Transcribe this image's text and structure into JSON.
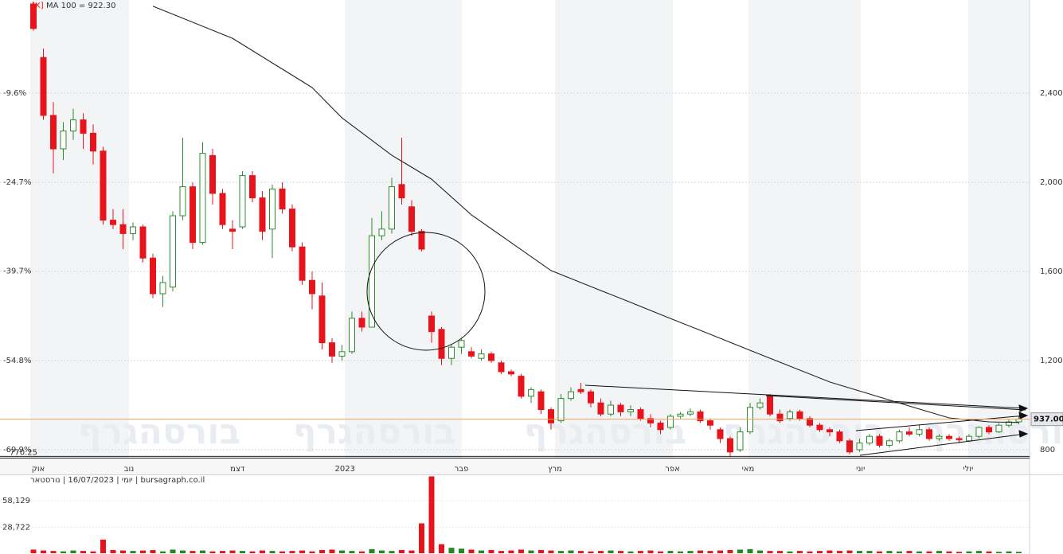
{
  "chart_data": {
    "type": "candlestick",
    "legend_close": "[X]",
    "legend": "MA 100 = 922.30",
    "info": "יומי | 16/07/2023 | נורסטאר | bursagraph.co.il",
    "watermark": "בורסהגרף",
    "up_color": "#2e8b2e",
    "down_color": "#e8141c",
    "xlim": [
      -0.32,
      100.08
    ],
    "xticks": [
      {
        "value": 0.48,
        "label": "אוק"
      },
      {
        "value": 9.6,
        "label": "נוב"
      },
      {
        "value": 20.5,
        "label": "דצמ"
      },
      {
        "value": 31.3,
        "label": "2023"
      },
      {
        "value": 43,
        "label": "פבר"
      },
      {
        "value": 52.4,
        "label": "מרץ"
      },
      {
        "value": 64.2,
        "label": "אפר"
      },
      {
        "value": 71.8,
        "label": "מאי"
      },
      {
        "value": 83.1,
        "label": "יוני"
      },
      {
        "value": 93.9,
        "label": "יולי"
      }
    ],
    "ylim": [
      764.3,
      2817.9
    ],
    "yticks": [
      800,
      {
        "value": 1200,
        "label": "1,200"
      },
      {
        "value": 1600,
        "label": "1,600"
      },
      {
        "value": 2000,
        "label": "2,000"
      },
      {
        "value": 2400,
        "label": "2,400"
      }
    ],
    "y2lim": [
      -71.25,
      6.15
    ],
    "y2ticks": [
      {
        "value": -69.9,
        "label": "-69.9%"
      },
      {
        "value": -54.8,
        "label": "-54.8%"
      },
      {
        "value": -39.7,
        "label": "-39.7%"
      },
      {
        "value": -24.7,
        "label": "-24.7%"
      },
      {
        "value": -9.6,
        "label": "-9.6%"
      }
    ],
    "volume_lim": [
      0,
      86300
    ],
    "volume_ticks": [
      {
        "value": 28722,
        "label": "28,722"
      },
      {
        "value": 58129,
        "label": "58,129"
      }
    ],
    "last_price": {
      "value": 937,
      "label": "937.00"
    },
    "low_mark": {
      "value": 770.25,
      "label": "770.25"
    },
    "open": [
      2800,
      2560,
      2300,
      2150,
      2230,
      2280,
      2220,
      2140,
      1830,
      1810,
      1770,
      1800,
      1660,
      1500,
      1530,
      1850,
      1980,
      1730,
      2120,
      1950,
      1790,
      1800,
      2030,
      1930,
      1790,
      1970,
      1880,
      1710,
      1560,
      1490,
      1280,
      1220,
      1240,
      1390,
      1350,
      1760,
      1790,
      1990,
      1890,
      1780,
      1400,
      1340,
      1210,
      1260,
      1240,
      1210,
      1230,
      1190,
      1150,
      1130,
      1040,
      1060,
      980,
      930,
      1030,
      1070,
      1060,
      1010,
      960,
      1000,
      970,
      980,
      940,
      920,
      900,
      950,
      960,
      970,
      930,
      890,
      850,
      800,
      880,
      990,
      1040,
      960,
      940,
      970,
      940,
      910,
      890,
      880,
      840,
      800,
      830,
      860,
      820,
      840,
      880,
      870,
      890,
      850,
      860,
      850,
      840,
      860,
      900,
      880,
      910,
      925
    ],
    "high": [
      2810,
      2600,
      2360,
      2270,
      2330,
      2310,
      2260,
      2160,
      1880,
      1880,
      1820,
      1810,
      1680,
      1580,
      1870,
      2200,
      2000,
      2180,
      2150,
      1970,
      1830,
      2050,
      2050,
      1960,
      1990,
      2000,
      1900,
      1730,
      1600,
      1550,
      1300,
      1270,
      1420,
      1420,
      1840,
      1870,
      2020,
      2200,
      1920,
      1790,
      1420,
      1350,
      1270,
      1300,
      1260,
      1250,
      1240,
      1200,
      1160,
      1140,
      1080,
      1070,
      990,
      1050,
      1080,
      1100,
      1070,
      1030,
      1020,
      1010,
      1000,
      990,
      960,
      930,
      960,
      970,
      985,
      980,
      940,
      900,
      860,
      900,
      1010,
      1030,
      1050,
      980,
      980,
      980,
      950,
      920,
      900,
      890,
      850,
      850,
      870,
      870,
      850,
      890,
      900,
      910,
      900,
      870,
      870,
      860,
      870,
      905,
      910,
      920,
      935,
      950
    ],
    "low": [
      2680,
      2280,
      2040,
      2100,
      2190,
      2150,
      2080,
      1810,
      1790,
      1700,
      1740,
      1640,
      1480,
      1440,
      1510,
      1830,
      1700,
      1720,
      1900,
      1790,
      1700,
      1790,
      1910,
      1740,
      1660,
      1860,
      1690,
      1540,
      1430,
      1250,
      1190,
      1200,
      1230,
      1330,
      1360,
      1740,
      1770,
      1900,
      1760,
      1690,
      1280,
      1180,
      1180,
      1230,
      1210,
      1200,
      1190,
      1140,
      1130,
      1030,
      1010,
      960,
      890,
      920,
      1020,
      1050,
      990,
      950,
      950,
      950,
      950,
      930,
      900,
      870,
      890,
      940,
      950,
      920,
      890,
      830,
      770.25,
      790,
      870,
      980,
      950,
      920,
      930,
      930,
      900,
      880,
      860,
      830,
      780,
      790,
      820,
      810,
      810,
      830,
      860,
      860,
      840,
      840,
      840,
      830,
      835,
      850,
      870,
      875,
      900,
      915
    ],
    "close": [
      2690,
      2300,
      2150,
      2230,
      2280,
      2220,
      2140,
      1830,
      1810,
      1770,
      1800,
      1660,
      1500,
      1550,
      1850,
      1980,
      1730,
      2130,
      1950,
      1810,
      1780,
      2030,
      1930,
      1780,
      1970,
      1880,
      1710,
      1560,
      1500,
      1280,
      1220,
      1240,
      1390,
      1350,
      1760,
      1790,
      1980,
      1930,
      1780,
      1700,
      1330,
      1210,
      1260,
      1290,
      1220,
      1230,
      1200,
      1150,
      1140,
      1040,
      1070,
      980,
      920,
      1030,
      1060,
      1060,
      1010,
      960,
      1000,
      970,
      980,
      940,
      920,
      890,
      950,
      960,
      970,
      930,
      910,
      850,
      790,
      880,
      990,
      1010,
      960,
      930,
      970,
      940,
      910,
      890,
      880,
      840,
      790,
      830,
      860,
      820,
      840,
      880,
      870,
      890,
      850,
      860,
      850,
      845,
      860,
      900,
      880,
      910,
      925,
      937
    ],
    "volume": [
      4000,
      3000,
      2500,
      2000,
      3000,
      2500,
      2000,
      15000,
      3500,
      3000,
      2500,
      3000,
      3500,
      2000,
      4000,
      3000,
      2500,
      3000,
      2000,
      2500,
      3000,
      2500,
      2000,
      3000,
      2500,
      2000,
      2500,
      3000,
      2000,
      3500,
      4000,
      3000,
      2500,
      2000,
      4500,
      3000,
      2500,
      3500,
      3000,
      33000,
      85000,
      10000,
      6000,
      5000,
      4000,
      3000,
      3500,
      2500,
      3000,
      4000,
      3000,
      3500,
      3000,
      2500,
      3000,
      2500,
      2000,
      2500,
      3000,
      2500,
      2000,
      2500,
      3000,
      2000,
      2500,
      2000,
      2500,
      3000,
      2500,
      3000,
      3500,
      4000,
      4500,
      3000,
      2500,
      2500,
      2000,
      2500,
      2000,
      2500,
      3000,
      2500,
      3000,
      2500,
      2500,
      2000,
      2500,
      2000,
      2500,
      2000,
      2000,
      2500,
      2000,
      1500,
      2000,
      2500,
      2000,
      1500,
      2000,
      1500
    ],
    "ma": {
      "color": "#222222",
      "x": [
        12,
        20,
        28,
        31,
        36,
        40,
        44,
        48,
        52,
        56,
        60,
        64,
        68,
        72,
        76,
        80,
        84,
        88,
        92,
        96,
        99
      ],
      "values": [
        2790,
        2646,
        2425,
        2289,
        2121,
        2014,
        1854,
        1729,
        1604,
        1532,
        1461,
        1389,
        1318,
        1246,
        1175,
        1104,
        1050,
        996,
        943,
        925,
        922.3
      ]
    }
  }
}
